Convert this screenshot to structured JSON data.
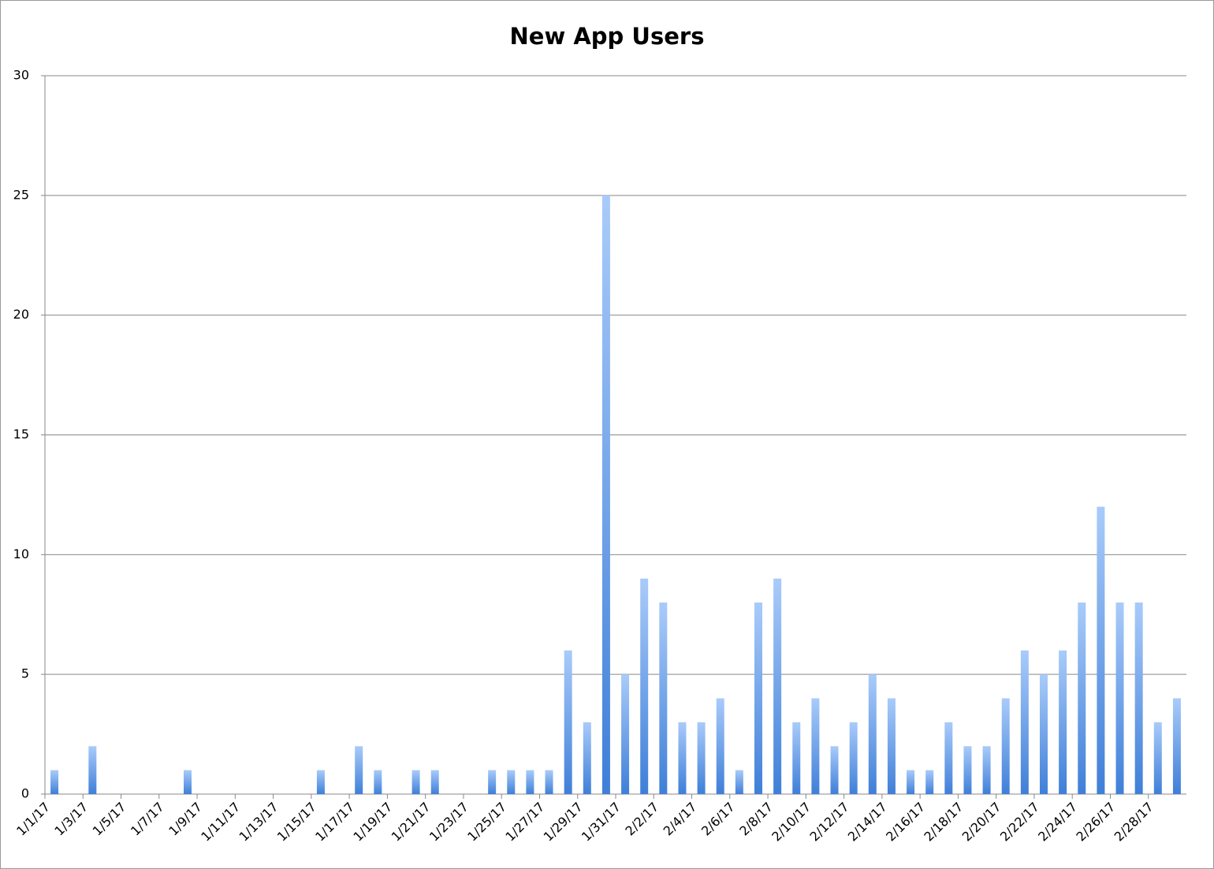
{
  "chart_data": {
    "type": "bar",
    "title": "New App Users",
    "categories": [
      "1/1/17",
      null,
      "1/3/17",
      null,
      "1/5/17",
      null,
      "1/7/17",
      null,
      "1/9/17",
      null,
      "1/11/17",
      null,
      "1/13/17",
      null,
      "1/15/17",
      null,
      "1/17/17",
      null,
      "1/19/17",
      null,
      "1/21/17",
      null,
      "1/23/17",
      null,
      "1/25/17",
      null,
      "1/27/17",
      null,
      "1/29/17",
      null,
      "1/31/17",
      null,
      "2/2/17",
      null,
      "2/4/17",
      null,
      "2/6/17",
      null,
      "2/8/17",
      null,
      "2/10/17",
      null,
      "2/12/17",
      null,
      "2/14/17",
      null,
      "2/16/17",
      null,
      "2/18/17",
      null,
      "2/20/17",
      null,
      "2/22/17",
      null,
      "2/24/17",
      null,
      "2/26/17",
      null,
      "2/28/17",
      null
    ],
    "values": [
      1,
      0,
      2,
      0,
      0,
      0,
      0,
      1,
      0,
      0,
      0,
      0,
      0,
      0,
      1,
      0,
      2,
      1,
      0,
      1,
      1,
      0,
      0,
      1,
      1,
      1,
      1,
      6,
      3,
      25,
      5,
      9,
      8,
      3,
      3,
      4,
      1,
      8,
      9,
      3,
      4,
      2,
      3,
      5,
      4,
      1,
      1,
      3,
      2,
      2,
      4,
      6,
      5,
      6,
      8,
      12,
      8,
      8,
      3,
      4
    ],
    "color": "#3f7fd8",
    "ylim": [
      0,
      30
    ],
    "yticks": [
      0,
      5,
      10,
      15,
      20,
      25,
      30
    ],
    "grid": true
  }
}
